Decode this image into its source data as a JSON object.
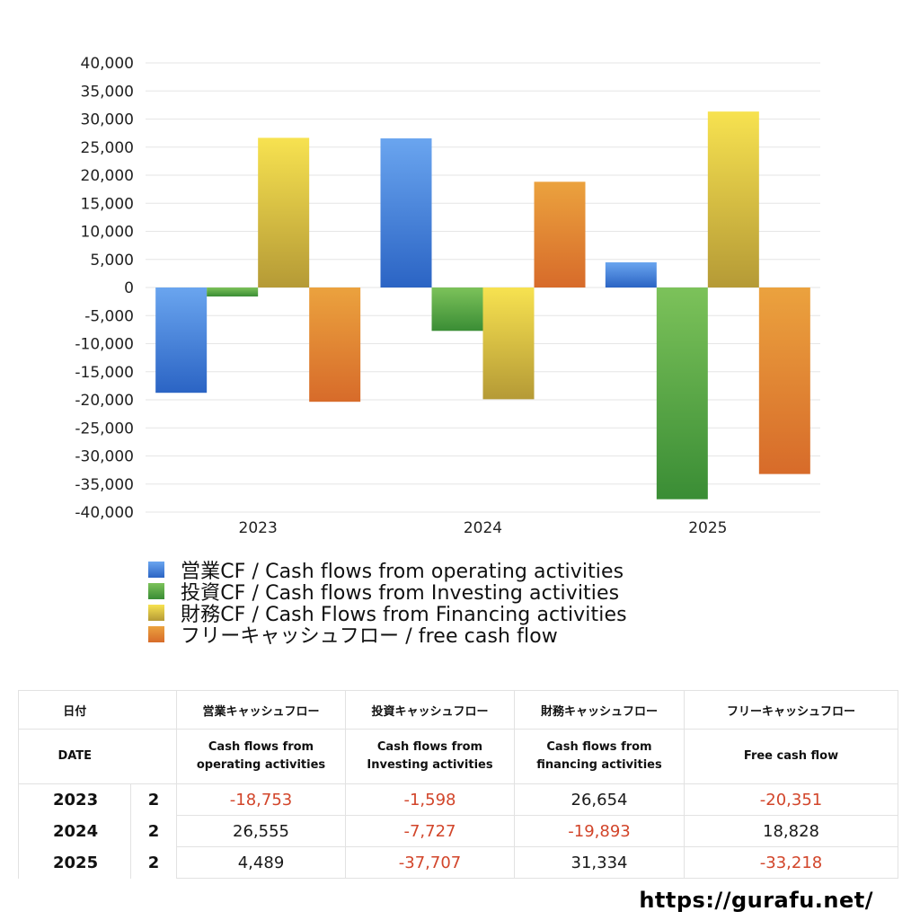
{
  "chart_data": {
    "type": "bar",
    "categories": [
      "2023",
      "2024",
      "2025"
    ],
    "ylim": [
      -40000,
      40000
    ],
    "yticks": [
      40000,
      35000,
      30000,
      25000,
      20000,
      15000,
      10000,
      5000,
      0,
      -5000,
      -10000,
      -15000,
      -20000,
      -25000,
      -30000,
      -35000,
      -40000
    ],
    "ytick_labels": [
      "40,000",
      "35,000",
      "30,000",
      "25,000",
      "20,000",
      "15,000",
      "10,000",
      "5,000",
      "0",
      "-5,000",
      "-10,000",
      "-15,000",
      "-20,000",
      "-25,000",
      "-30,000",
      "-35,000",
      "-40,000"
    ],
    "grid": true,
    "legend_position": "bottom",
    "series": [
      {
        "name": "営業CF / Cash flows from operating activities",
        "values": [
          -18753,
          26555,
          4489
        ],
        "color_light": "#6aa5ef",
        "color_dark": "#2b64c4"
      },
      {
        "name": "投資CF / Cash flows from Investing activities",
        "values": [
          -1598,
          -7727,
          -37707
        ],
        "color_light": "#7cc25a",
        "color_dark": "#3a8d35"
      },
      {
        "name": "財務CF / Cash Flows from Financing activities",
        "values": [
          26654,
          -19893,
          31334
        ],
        "color_light": "#f7e250",
        "color_dark": "#b59a36"
      },
      {
        "name": "フリーキャッシュフロー / free cash flow",
        "values": [
          -20351,
          18828,
          -33218
        ],
        "color_light": "#eba23e",
        "color_dark": "#d76b2a"
      }
    ]
  },
  "table": {
    "headers_jp": [
      "日付",
      "営業キャッシュフロー",
      "投資キャッシュフロー",
      "財務キャッシュフロー",
      "フリーキャッシュフロー"
    ],
    "headers_en": [
      {
        "line1": "DATE",
        "line2": ""
      },
      {
        "line1": "Cash flows from",
        "line2": "operating activities"
      },
      {
        "line1": "Cash flows from",
        "line2": "Investing activities"
      },
      {
        "line1": "Cash flows from",
        "line2": "financing activities"
      },
      {
        "line1": "Free cash flow",
        "line2": ""
      }
    ],
    "rows": [
      {
        "year": "2023",
        "quarter": "2",
        "values": [
          "-18,753",
          "-1,598",
          "26,654",
          "-20,351"
        ]
      },
      {
        "year": "2024",
        "quarter": "2",
        "values": [
          "26,555",
          "-7,727",
          "-19,893",
          "18,828"
        ]
      },
      {
        "year": "2025",
        "quarter": "2",
        "values": [
          "4,489",
          "-37,707",
          "31,334",
          "-33,218"
        ]
      }
    ],
    "negative_color": "#d2452a"
  },
  "site_url": "https://gurafu.net/"
}
